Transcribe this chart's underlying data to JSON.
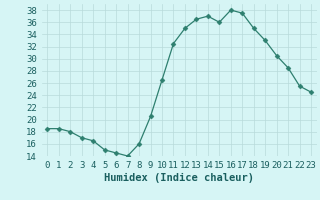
{
  "x": [
    0,
    1,
    2,
    3,
    4,
    5,
    6,
    7,
    8,
    9,
    10,
    11,
    12,
    13,
    14,
    15,
    16,
    17,
    18,
    19,
    20,
    21,
    22,
    23
  ],
  "y": [
    18.5,
    18.5,
    18.0,
    17.0,
    16.5,
    15.0,
    14.5,
    14.0,
    16.0,
    20.5,
    26.5,
    32.5,
    35.0,
    36.5,
    37.0,
    36.0,
    38.0,
    37.5,
    35.0,
    33.0,
    30.5,
    28.5,
    25.5,
    24.5
  ],
  "line_color": "#2e7f6f",
  "marker": "D",
  "marker_size": 2.5,
  "bg_color": "#d6f5f5",
  "grid_color": "#b8dada",
  "xlabel": "Humidex (Indice chaleur)",
  "ylim": [
    14,
    39
  ],
  "xlim": [
    -0.5,
    23.5
  ],
  "yticks": [
    14,
    16,
    18,
    20,
    22,
    24,
    26,
    28,
    30,
    32,
    34,
    36,
    38
  ],
  "xtick_labels": [
    "0",
    "1",
    "2",
    "3",
    "4",
    "5",
    "6",
    "7",
    "8",
    "9",
    "10",
    "11",
    "12",
    "13",
    "14",
    "15",
    "16",
    "17",
    "18",
    "19",
    "20",
    "21",
    "22",
    "23"
  ],
  "xlabel_fontsize": 7.5,
  "tick_fontsize": 6.5,
  "xlabel_color": "#1a5f5f"
}
